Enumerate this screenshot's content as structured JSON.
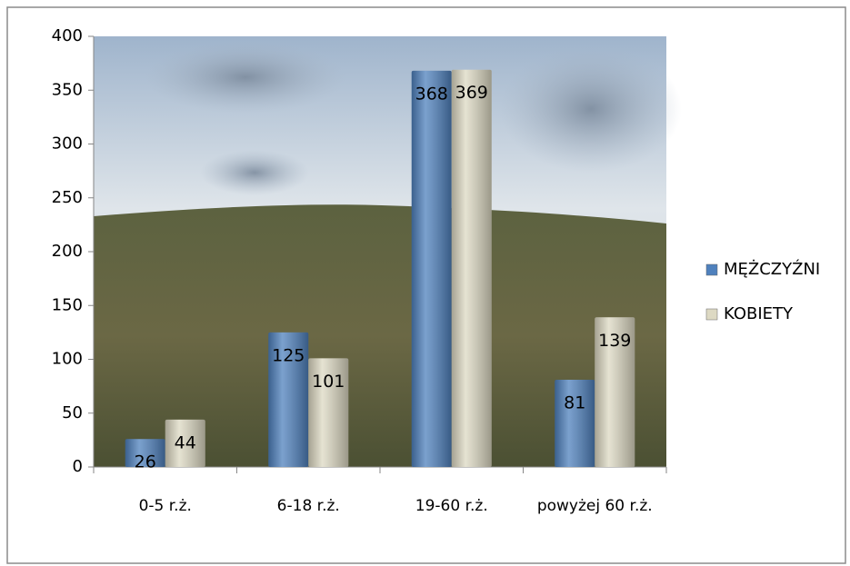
{
  "chart_data": {
    "type": "bar",
    "categories": [
      "0-5 r.ż.",
      "6-18 r.ż.",
      "19-60 r.ż.",
      "powyżej 60 r.ż."
    ],
    "series": [
      {
        "name": "MĘŻCZYŹNI",
        "color": "#4f81bd",
        "values": [
          26,
          125,
          368,
          81
        ]
      },
      {
        "name": "KOBIETY",
        "color": "#ddd9c3",
        "values": [
          44,
          101,
          369,
          139
        ]
      }
    ],
    "ylim": [
      0,
      400
    ],
    "yticks": [
      0,
      50,
      100,
      150,
      200,
      250,
      300,
      350,
      400
    ],
    "legend": "right"
  }
}
